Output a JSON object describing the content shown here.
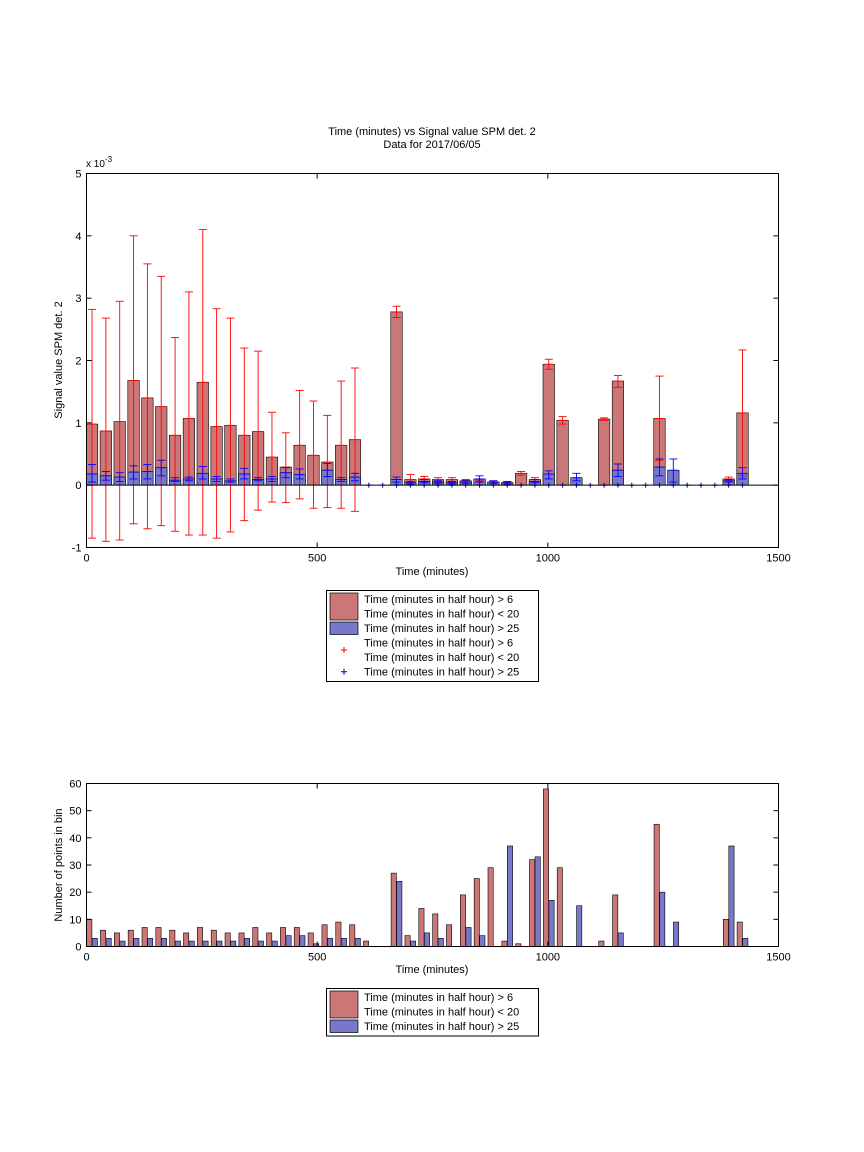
{
  "chart_data": [
    {
      "type": "bar",
      "title": "Time (minutes) vs Signal value SPM det. 2",
      "subtitle": "Data for 2017/06/05",
      "xlabel": "Time (minutes)",
      "ylabel": "Signal value SPM det. 2",
      "y_exponent_label": "x 10",
      "y_exponent_power": "-3",
      "xlim": [
        0,
        1500
      ],
      "ylim": [
        -1,
        5
      ],
      "xticks": [
        0,
        500,
        1000,
        1500
      ],
      "yticks": [
        -1,
        0,
        1,
        2,
        3,
        4,
        5
      ],
      "grid": false,
      "legend_placement": "below",
      "series": [
        {
          "name": "Time (minutes in half hour) > 6 Time (minutes in half hour) < 20",
          "color": "#cc7777",
          "errorbar_color": "#ff0000",
          "x": [
            12,
            42,
            72,
            102,
            132,
            162,
            192,
            222,
            252,
            282,
            312,
            342,
            372,
            402,
            432,
            462,
            492,
            522,
            552,
            582,
            612,
            672,
            702,
            732,
            762,
            792,
            822,
            852,
            882,
            912,
            942,
            972,
            1002,
            1032,
            1062,
            1122,
            1152,
            1242,
            1272,
            1302,
            1332,
            1362,
            1392,
            1422
          ],
          "values": [
            0.98,
            0.87,
            1.02,
            1.68,
            1.4,
            1.26,
            0.8,
            1.07,
            1.65,
            0.94,
            0.96,
            0.8,
            0.86,
            0.45,
            0.29,
            0.64,
            0.48,
            0.37,
            0.64,
            0.73,
            0.0,
            2.78,
            0.09,
            0.1,
            0.09,
            0.09,
            0.07,
            0.08,
            0.05,
            0.04,
            0.19,
            0.09,
            1.94,
            1.04,
            0.0,
            1.06,
            1.67,
            1.07,
            0.0,
            0.0,
            0.0,
            0.0,
            0.1,
            1.16
          ],
          "err_low": [
            -0.85,
            -0.9,
            -0.88,
            -0.62,
            -0.7,
            -0.65,
            -0.74,
            -0.8,
            -0.8,
            -0.85,
            -0.75,
            -0.57,
            -0.4,
            -0.27,
            -0.28,
            -0.22,
            -0.37,
            -0.36,
            -0.37,
            -0.42,
            0.0,
            2.69,
            0.02,
            0.06,
            0.06,
            0.06,
            0.05,
            0.06,
            0.03,
            0.02,
            0.16,
            0.06,
            1.86,
            0.98,
            0.0,
            1.04,
            1.57,
            0.4,
            0.0,
            0.0,
            0.0,
            0.0,
            0.07,
            0.15
          ],
          "err_high": [
            2.82,
            2.68,
            2.95,
            4.0,
            3.55,
            3.35,
            2.37,
            3.1,
            4.1,
            2.83,
            2.68,
            2.2,
            2.15,
            1.17,
            0.84,
            1.52,
            1.35,
            1.12,
            1.67,
            1.88,
            0.0,
            2.87,
            0.17,
            0.14,
            0.12,
            0.12,
            0.09,
            0.1,
            0.07,
            0.06,
            0.22,
            0.12,
            2.02,
            1.1,
            0.0,
            1.08,
            1.76,
            1.75,
            0.0,
            0.0,
            0.0,
            0.0,
            0.13,
            2.17
          ]
        },
        {
          "name": "Time (minutes in half hour) > 25",
          "color": "#7777cc",
          "errorbar_color": "#0000ff",
          "x": [
            12,
            42,
            72,
            102,
            132,
            162,
            192,
            222,
            252,
            282,
            312,
            342,
            372,
            402,
            432,
            462,
            492,
            522,
            552,
            582,
            612,
            672,
            702,
            732,
            762,
            792,
            822,
            852,
            882,
            912,
            942,
            972,
            1002,
            1032,
            1062,
            1122,
            1152,
            1242,
            1272,
            1302,
            1332,
            1362,
            1392,
            1422
          ],
          "values": [
            0.18,
            0.15,
            0.13,
            0.21,
            0.22,
            0.28,
            0.08,
            0.1,
            0.19,
            0.1,
            0.07,
            0.18,
            0.09,
            0.1,
            0.2,
            0.17,
            0.0,
            0.24,
            0.09,
            0.13,
            0.0,
            0.09,
            0.04,
            0.06,
            0.05,
            0.04,
            0.05,
            0.1,
            0.05,
            0.04,
            0.0,
            0.06,
            0.18,
            0.0,
            0.12,
            0.0,
            0.24,
            0.29,
            0.24,
            0.0,
            0.0,
            0.0,
            0.07,
            0.19
          ],
          "err_low": [
            0.05,
            0.08,
            0.06,
            0.1,
            0.1,
            0.15,
            0.06,
            0.07,
            0.1,
            0.06,
            0.05,
            0.1,
            0.07,
            0.06,
            0.12,
            0.1,
            0.0,
            0.14,
            0.06,
            0.07,
            0.0,
            0.05,
            0.02,
            0.04,
            0.03,
            0.02,
            0.03,
            0.05,
            0.03,
            0.02,
            0.0,
            0.04,
            0.1,
            0.0,
            0.07,
            0.0,
            0.14,
            0.15,
            0.05,
            0.0,
            0.0,
            0.0,
            0.05,
            0.1
          ],
          "err_high": [
            0.33,
            0.22,
            0.2,
            0.31,
            0.33,
            0.4,
            0.12,
            0.13,
            0.3,
            0.14,
            0.1,
            0.27,
            0.12,
            0.14,
            0.28,
            0.26,
            0.0,
            0.35,
            0.12,
            0.19,
            0.0,
            0.13,
            0.06,
            0.09,
            0.07,
            0.06,
            0.08,
            0.15,
            0.07,
            0.06,
            0.0,
            0.09,
            0.23,
            0.0,
            0.19,
            0.0,
            0.34,
            0.42,
            0.42,
            0.0,
            0.0,
            0.0,
            0.09,
            0.28
          ]
        }
      ],
      "markers_x": [
        612,
        642,
        672,
        702,
        732,
        762,
        792,
        822,
        852,
        882,
        912,
        942,
        972,
        1002,
        1032,
        1062,
        1092,
        1122,
        1152,
        1182,
        1212,
        1242,
        1272,
        1302,
        1332,
        1362,
        1392,
        1422
      ],
      "legend": [
        {
          "line1": "Time (minutes in half hour) > 6",
          "line2": "Time (minutes in half hour) < 20",
          "kind": "bar",
          "color": "#cc7777"
        },
        {
          "line1": "Time (minutes in half hour) > 25",
          "line2": "",
          "kind": "bar",
          "color": "#7777cc"
        },
        {
          "line1": "Time (minutes in half hour) > 6",
          "line2": "Time (minutes in half hour) < 20",
          "kind": "marker",
          "color": "#ff0000"
        },
        {
          "line1": "Time (minutes in half hour) > 25",
          "line2": "",
          "kind": "marker",
          "color": "#0000aa"
        }
      ]
    },
    {
      "type": "bar",
      "title": "",
      "xlabel": "Time (minutes)",
      "ylabel": "Number of points in bin",
      "xlim": [
        0,
        1500
      ],
      "ylim": [
        0,
        60
      ],
      "xticks": [
        0,
        500,
        1000,
        1500
      ],
      "yticks": [
        0,
        10,
        20,
        30,
        40,
        50,
        60
      ],
      "grid": false,
      "legend_placement": "below",
      "series": [
        {
          "name": "Time (minutes in half hour) > 6 Time (minutes in half hour) < 20",
          "color": "#cc7777",
          "x": [
            6,
            36,
            66,
            96,
            126,
            156,
            186,
            216,
            246,
            276,
            306,
            336,
            366,
            396,
            426,
            456,
            486,
            516,
            546,
            576,
            606,
            666,
            696,
            726,
            756,
            786,
            816,
            846,
            876,
            906,
            936,
            966,
            996,
            1026,
            1056,
            1116,
            1146,
            1236,
            1266,
            1296,
            1326,
            1356,
            1386,
            1416
          ],
          "values": [
            10,
            6,
            5,
            6,
            7,
            7,
            6,
            5,
            7,
            6,
            5,
            5,
            7,
            5,
            7,
            7,
            5,
            8,
            9,
            8,
            2,
            27,
            4,
            14,
            12,
            8,
            19,
            25,
            29,
            2,
            1,
            32,
            58,
            29,
            0,
            2,
            19,
            45,
            0,
            0,
            0,
            0,
            10,
            9
          ]
        },
        {
          "name": "Time (minutes in half hour) > 25",
          "color": "#7777cc",
          "x": [
            18,
            48,
            78,
            108,
            138,
            168,
            198,
            228,
            258,
            288,
            318,
            348,
            378,
            408,
            438,
            468,
            498,
            528,
            558,
            588,
            618,
            678,
            708,
            738,
            768,
            798,
            828,
            858,
            888,
            918,
            948,
            978,
            1008,
            1038,
            1068,
            1128,
            1158,
            1248,
            1278,
            1308,
            1338,
            1368,
            1398,
            1428
          ],
          "values": [
            3,
            3,
            2,
            3,
            3,
            3,
            2,
            2,
            2,
            2,
            2,
            3,
            2,
            2,
            4,
            4,
            1,
            3,
            3,
            3,
            0,
            24,
            2,
            5,
            3,
            0,
            7,
            4,
            0,
            37,
            0,
            33,
            17,
            0,
            15,
            0,
            5,
            20,
            9,
            0,
            0,
            0,
            37,
            3
          ]
        }
      ],
      "legend": [
        {
          "line1": "Time (minutes in half hour) > 6",
          "line2": "Time (minutes in half hour) < 20",
          "kind": "bar",
          "color": "#cc7777"
        },
        {
          "line1": "Time (minutes in half hour) > 25",
          "line2": "",
          "kind": "bar",
          "color": "#7777cc"
        }
      ]
    }
  ]
}
